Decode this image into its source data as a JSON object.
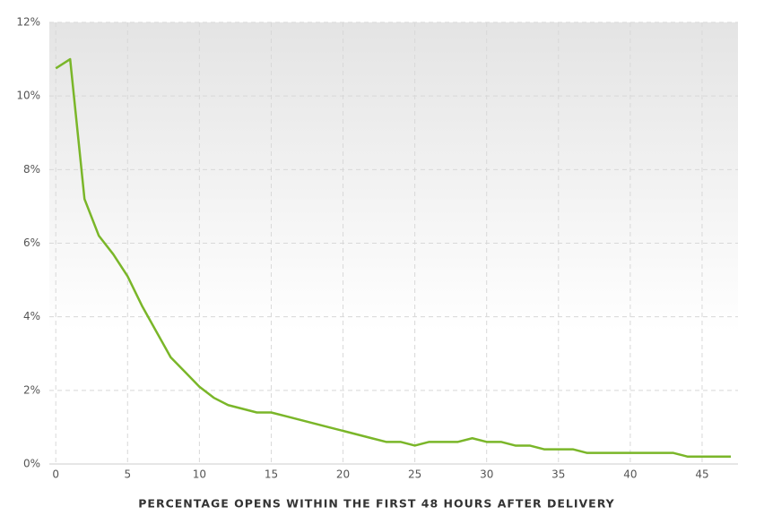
{
  "chart_data": {
    "type": "line",
    "x_label": "PERCENTAGE OPENS WITHIN THE FIRST 48 HOURS AFTER DELIVERY",
    "x": [
      0,
      1,
      2,
      3,
      4,
      5,
      6,
      7,
      8,
      9,
      10,
      11,
      12,
      13,
      14,
      15,
      16,
      17,
      18,
      19,
      20,
      21,
      22,
      23,
      24,
      25,
      26,
      27,
      28,
      29,
      30,
      31,
      32,
      33,
      34,
      35,
      36,
      37,
      38,
      39,
      40,
      41,
      42,
      43,
      44,
      45,
      46,
      47
    ],
    "values": [
      10.75,
      11.0,
      7.2,
      6.2,
      5.7,
      5.1,
      4.3,
      3.6,
      2.9,
      2.5,
      2.1,
      1.8,
      1.6,
      1.5,
      1.4,
      1.4,
      1.3,
      1.2,
      1.1,
      1.0,
      0.9,
      0.8,
      0.7,
      0.6,
      0.6,
      0.5,
      0.6,
      0.6,
      0.6,
      0.7,
      0.6,
      0.6,
      0.5,
      0.5,
      0.4,
      0.4,
      0.4,
      0.3,
      0.3,
      0.3,
      0.3,
      0.3,
      0.3,
      0.3,
      0.2,
      0.2,
      0.2,
      0.2
    ],
    "color": "#7ab629",
    "xlim": [
      -0.45,
      47.5
    ],
    "ylim": [
      0,
      12
    ],
    "xticks": [
      0,
      5,
      10,
      15,
      20,
      25,
      30,
      35,
      40,
      45
    ],
    "yticks": [
      {
        "value": 0,
        "label": "0%"
      },
      {
        "value": 2,
        "label": "2%"
      },
      {
        "value": 4,
        "label": "4%"
      },
      {
        "value": 6,
        "label": "6%"
      },
      {
        "value": 8,
        "label": "8%"
      },
      {
        "value": 10,
        "label": "10%"
      },
      {
        "value": 12,
        "label": "12%"
      }
    ],
    "grid": true
  }
}
